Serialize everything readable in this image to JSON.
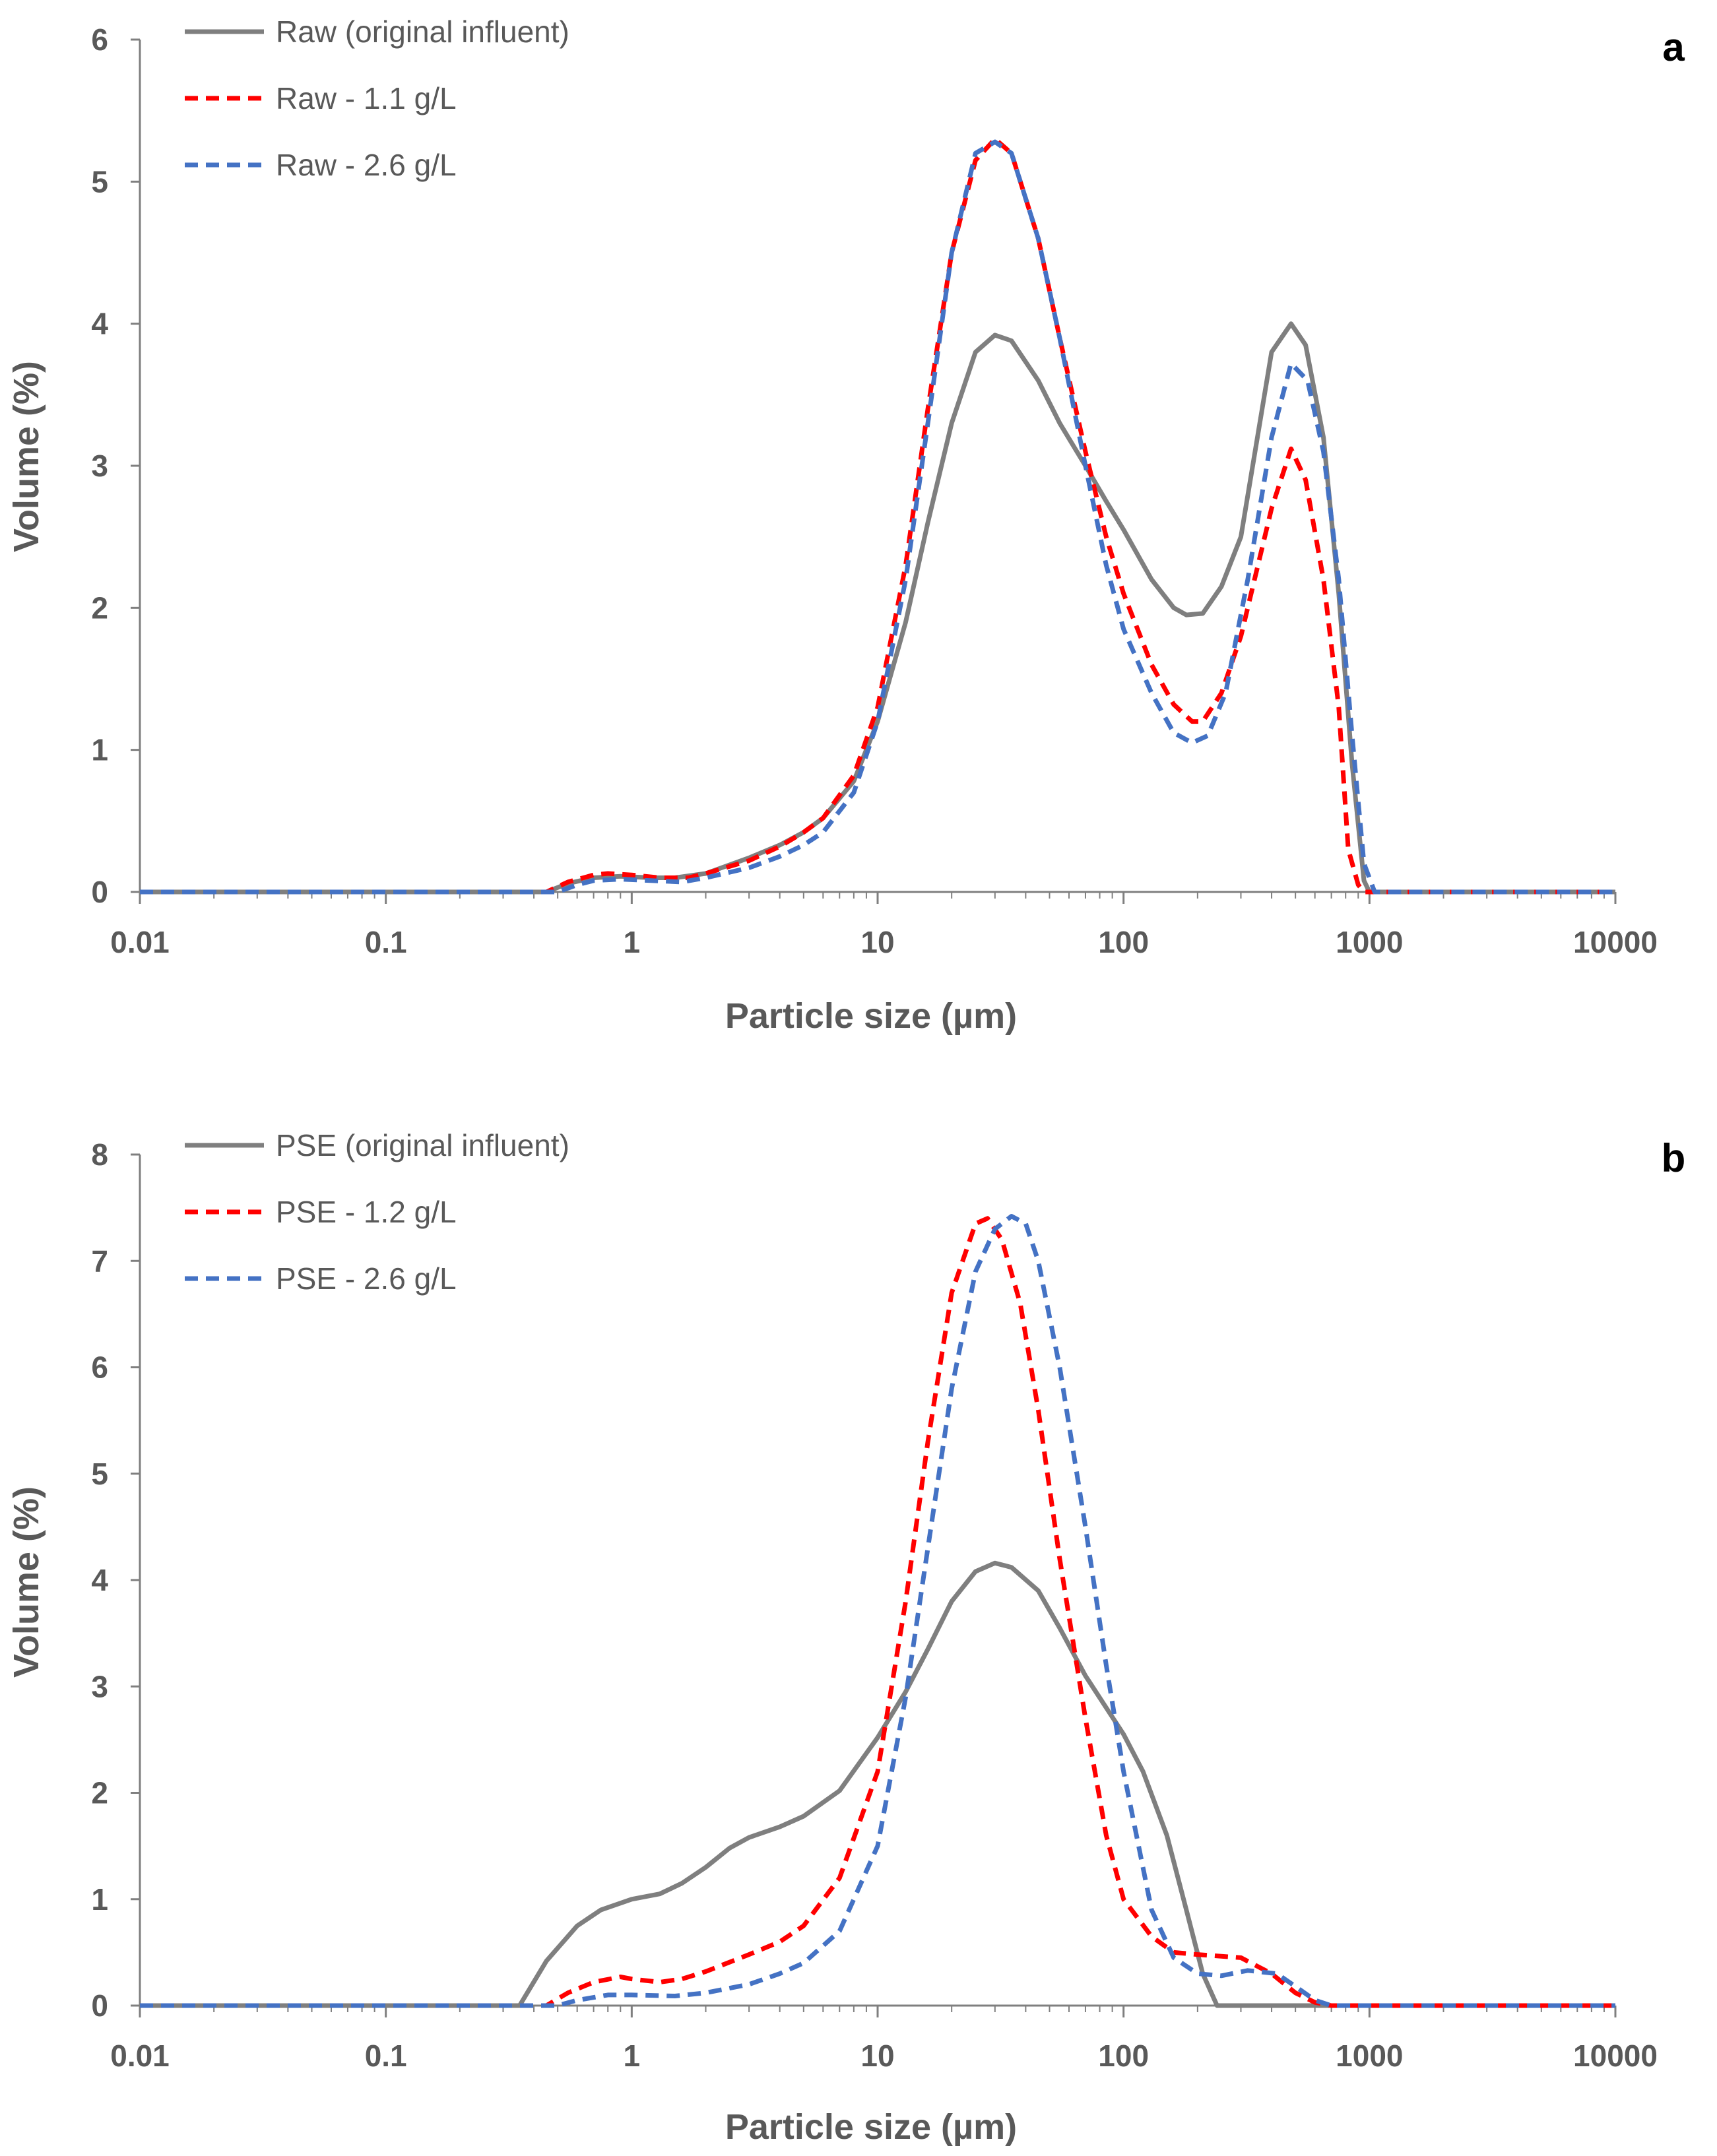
{
  "chart_data": [
    {
      "type": "line",
      "panel_label": "a",
      "xscale": "log",
      "xlabel": "Particle size (µm)",
      "ylabel": "Volume (%)",
      "xlim": [
        0.01,
        10000
      ],
      "ylim": [
        0,
        6
      ],
      "x_ticks": [
        "0.01",
        "0.1",
        "1",
        "10",
        "100",
        "1000",
        "10000"
      ],
      "y_ticks": [
        "0",
        "1",
        "2",
        "3",
        "4",
        "5",
        "6"
      ],
      "legend_position": "top-left",
      "series": [
        {
          "name": "Raw (original influent)",
          "color": "#7f7f7f",
          "style": "solid",
          "points": [
            [
              0.01,
              0
            ],
            [
              0.45,
              0
            ],
            [
              0.55,
              0.06
            ],
            [
              0.7,
              0.1
            ],
            [
              0.9,
              0.11
            ],
            [
              1.2,
              0.1
            ],
            [
              1.5,
              0.1
            ],
            [
              2,
              0.13
            ],
            [
              3,
              0.24
            ],
            [
              4,
              0.33
            ],
            [
              5,
              0.42
            ],
            [
              6,
              0.52
            ],
            [
              8,
              0.78
            ],
            [
              10,
              1.2
            ],
            [
              13,
              1.9
            ],
            [
              16,
              2.6
            ],
            [
              20,
              3.3
            ],
            [
              25,
              3.8
            ],
            [
              30,
              3.92
            ],
            [
              35,
              3.88
            ],
            [
              45,
              3.6
            ],
            [
              55,
              3.3
            ],
            [
              70,
              3
            ],
            [
              85,
              2.75
            ],
            [
              100,
              2.55
            ],
            [
              130,
              2.2
            ],
            [
              160,
              2
            ],
            [
              180,
              1.95
            ],
            [
              210,
              1.96
            ],
            [
              250,
              2.15
            ],
            [
              300,
              2.5
            ],
            [
              400,
              3.8
            ],
            [
              480,
              4
            ],
            [
              550,
              3.85
            ],
            [
              650,
              3.2
            ],
            [
              750,
              2.1
            ],
            [
              850,
              0.9
            ],
            [
              950,
              0.08
            ],
            [
              1000,
              0
            ],
            [
              10000,
              0
            ]
          ]
        },
        {
          "name": "Raw - 1.1 g/L",
          "color": "#ff0000",
          "style": "dashed",
          "points": [
            [
              0.01,
              0
            ],
            [
              0.45,
              0
            ],
            [
              0.55,
              0.07
            ],
            [
              0.7,
              0.12
            ],
            [
              0.8,
              0.13
            ],
            [
              1,
              0.12
            ],
            [
              1.3,
              0.1
            ],
            [
              1.7,
              0.1
            ],
            [
              2,
              0.13
            ],
            [
              3,
              0.22
            ],
            [
              4,
              0.32
            ],
            [
              5,
              0.42
            ],
            [
              6,
              0.52
            ],
            [
              8,
              0.82
            ],
            [
              10,
              1.3
            ],
            [
              13,
              2.3
            ],
            [
              16,
              3.4
            ],
            [
              20,
              4.5
            ],
            [
              25,
              5.15
            ],
            [
              30,
              5.3
            ],
            [
              35,
              5.2
            ],
            [
              45,
              4.6
            ],
            [
              55,
              3.9
            ],
            [
              70,
              3.1
            ],
            [
              85,
              2.5
            ],
            [
              100,
              2.1
            ],
            [
              130,
              1.6
            ],
            [
              160,
              1.32
            ],
            [
              190,
              1.2
            ],
            [
              210,
              1.2
            ],
            [
              250,
              1.4
            ],
            [
              300,
              1.8
            ],
            [
              400,
              2.7
            ],
            [
              480,
              3.12
            ],
            [
              550,
              2.9
            ],
            [
              650,
              2.2
            ],
            [
              750,
              1.3
            ],
            [
              820,
              0.3
            ],
            [
              900,
              0.05
            ],
            [
              950,
              0
            ],
            [
              10000,
              0
            ]
          ]
        },
        {
          "name": "Raw - 2.6 g/L",
          "color": "#4472c4",
          "style": "dashed",
          "points": [
            [
              0.01,
              0
            ],
            [
              0.5,
              0
            ],
            [
              0.6,
              0.05
            ],
            [
              0.7,
              0.08
            ],
            [
              0.9,
              0.09
            ],
            [
              1.2,
              0.08
            ],
            [
              1.6,
              0.07
            ],
            [
              2,
              0.1
            ],
            [
              3,
              0.17
            ],
            [
              4,
              0.25
            ],
            [
              5,
              0.33
            ],
            [
              6,
              0.42
            ],
            [
              8,
              0.7
            ],
            [
              10,
              1.2
            ],
            [
              13,
              2.2
            ],
            [
              16,
              3.3
            ],
            [
              20,
              4.5
            ],
            [
              25,
              5.2
            ],
            [
              30,
              5.28
            ],
            [
              35,
              5.2
            ],
            [
              45,
              4.6
            ],
            [
              55,
              3.9
            ],
            [
              70,
              3
            ],
            [
              85,
              2.3
            ],
            [
              100,
              1.85
            ],
            [
              130,
              1.4
            ],
            [
              160,
              1.12
            ],
            [
              190,
              1.05
            ],
            [
              220,
              1.1
            ],
            [
              260,
              1.4
            ],
            [
              320,
              2.2
            ],
            [
              400,
              3.2
            ],
            [
              480,
              3.72
            ],
            [
              560,
              3.6
            ],
            [
              650,
              3.1
            ],
            [
              750,
              2.2
            ],
            [
              850,
              1.1
            ],
            [
              950,
              0.2
            ],
            [
              1050,
              0
            ],
            [
              10000,
              0
            ]
          ]
        }
      ]
    },
    {
      "type": "line",
      "panel_label": "b",
      "xscale": "log",
      "xlabel": "Particle size (µm)",
      "ylabel": "Volume (%)",
      "xlim": [
        0.01,
        10000
      ],
      "ylim": [
        0,
        8
      ],
      "x_ticks": [
        "0.01",
        "0.1",
        "1",
        "10",
        "100",
        "1000",
        "10000"
      ],
      "y_ticks": [
        "0",
        "1",
        "2",
        "3",
        "4",
        "5",
        "6",
        "7",
        "8"
      ],
      "legend_position": "top-left",
      "series": [
        {
          "name": "PSE (original influent)",
          "color": "#7f7f7f",
          "style": "solid",
          "points": [
            [
              0.01,
              0
            ],
            [
              0.35,
              0
            ],
            [
              0.45,
              0.42
            ],
            [
              0.6,
              0.75
            ],
            [
              0.75,
              0.9
            ],
            [
              1,
              1
            ],
            [
              1.3,
              1.05
            ],
            [
              1.6,
              1.15
            ],
            [
              2,
              1.3
            ],
            [
              2.5,
              1.48
            ],
            [
              3,
              1.58
            ],
            [
              4,
              1.68
            ],
            [
              5,
              1.78
            ],
            [
              7,
              2.02
            ],
            [
              10,
              2.52
            ],
            [
              13,
              2.95
            ],
            [
              16,
              3.35
            ],
            [
              20,
              3.8
            ],
            [
              25,
              4.08
            ],
            [
              30,
              4.16
            ],
            [
              35,
              4.12
            ],
            [
              45,
              3.9
            ],
            [
              55,
              3.55
            ],
            [
              70,
              3.1
            ],
            [
              85,
              2.8
            ],
            [
              100,
              2.55
            ],
            [
              120,
              2.2
            ],
            [
              150,
              1.6
            ],
            [
              180,
              0.9
            ],
            [
              210,
              0.3
            ],
            [
              240,
              0
            ],
            [
              10000,
              0
            ]
          ]
        },
        {
          "name": "PSE - 1.2 g/L",
          "color": "#ff0000",
          "style": "dashed",
          "points": [
            [
              0.01,
              0
            ],
            [
              0.45,
              0
            ],
            [
              0.55,
              0.12
            ],
            [
              0.7,
              0.22
            ],
            [
              0.9,
              0.27
            ],
            [
              1,
              0.25
            ],
            [
              1.3,
              0.22
            ],
            [
              1.6,
              0.25
            ],
            [
              2,
              0.32
            ],
            [
              3,
              0.48
            ],
            [
              4,
              0.6
            ],
            [
              5,
              0.75
            ],
            [
              7,
              1.2
            ],
            [
              10,
              2.2
            ],
            [
              13,
              3.8
            ],
            [
              16,
              5.3
            ],
            [
              20,
              6.7
            ],
            [
              25,
              7.35
            ],
            [
              28,
              7.4
            ],
            [
              32,
              7.2
            ],
            [
              38,
              6.6
            ],
            [
              45,
              5.6
            ],
            [
              55,
              4.2
            ],
            [
              70,
              2.7
            ],
            [
              85,
              1.6
            ],
            [
              100,
              1
            ],
            [
              130,
              0.65
            ],
            [
              160,
              0.5
            ],
            [
              200,
              0.48
            ],
            [
              300,
              0.45
            ],
            [
              400,
              0.3
            ],
            [
              500,
              0.12
            ],
            [
              600,
              0.03
            ],
            [
              700,
              0
            ],
            [
              10000,
              0
            ]
          ]
        },
        {
          "name": "PSE - 2.6 g/L",
          "color": "#4472c4",
          "style": "dashed",
          "points": [
            [
              0.01,
              0
            ],
            [
              0.5,
              0
            ],
            [
              0.6,
              0.05
            ],
            [
              0.8,
              0.1
            ],
            [
              1,
              0.1
            ],
            [
              1.5,
              0.09
            ],
            [
              2,
              0.12
            ],
            [
              3,
              0.2
            ],
            [
              4,
              0.3
            ],
            [
              5,
              0.4
            ],
            [
              7,
              0.7
            ],
            [
              10,
              1.5
            ],
            [
              13,
              2.9
            ],
            [
              16,
              4.3
            ],
            [
              20,
              5.8
            ],
            [
              25,
              6.9
            ],
            [
              30,
              7.3
            ],
            [
              35,
              7.42
            ],
            [
              40,
              7.35
            ],
            [
              45,
              7
            ],
            [
              55,
              6
            ],
            [
              70,
              4.5
            ],
            [
              85,
              3.2
            ],
            [
              100,
              2.2
            ],
            [
              130,
              0.9
            ],
            [
              160,
              0.45
            ],
            [
              200,
              0.3
            ],
            [
              250,
              0.28
            ],
            [
              320,
              0.33
            ],
            [
              420,
              0.3
            ],
            [
              500,
              0.18
            ],
            [
              600,
              0.05
            ],
            [
              700,
              0
            ],
            [
              10000,
              0
            ]
          ]
        }
      ]
    }
  ]
}
